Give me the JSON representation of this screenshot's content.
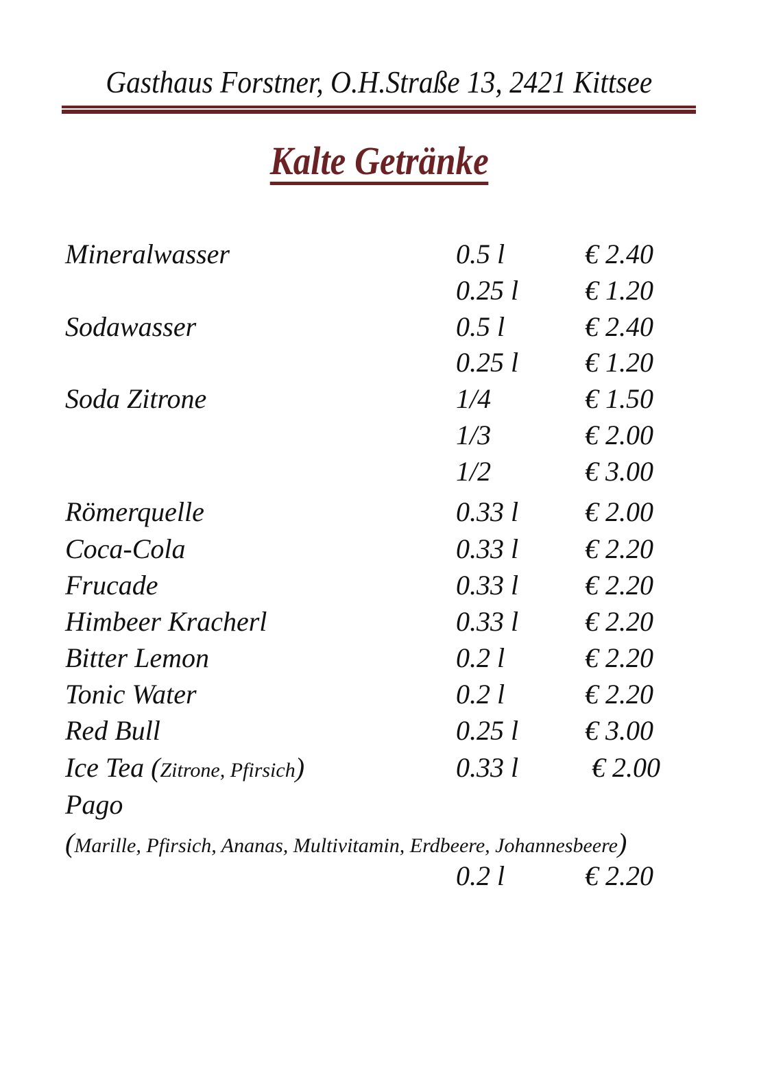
{
  "header": "Gasthaus Forstner, O.H.Straße 13, 2421 Kittsee",
  "title": "Kalte Getränke",
  "accent_color": "#6b2224",
  "items": [
    {
      "name": "Mineralwasser",
      "size": "0.5 l",
      "price": "€ 2.40"
    },
    {
      "name": "",
      "size": "0.25 l",
      "price": "€ 1.20"
    },
    {
      "name": "Sodawasser",
      "size": "0.5 l",
      "price": "€ 2.40"
    },
    {
      "name": "",
      "size": "0.25 l",
      "price": "€ 1.20"
    },
    {
      "name": "Soda Zitrone",
      "size": "1/4",
      "price": "€ 1.50"
    },
    {
      "name": "",
      "size": "1/3",
      "price": "€ 2.00"
    },
    {
      "name": "",
      "size": "1/2",
      "price": "€ 3.00"
    },
    {
      "name": "Römerquelle",
      "size": "0.33 l",
      "price": "€ 2.00"
    },
    {
      "name": "Coca-Cola",
      "size": "0.33 l",
      "price": "€ 2.20"
    },
    {
      "name": "Frucade",
      "size": "0.33 l",
      "price": "€ 2.20"
    },
    {
      "name": "Himbeer Kracherl",
      "size": "0.33 l",
      "price": "€ 2.20"
    },
    {
      "name": "Bitter Lemon",
      "size": "0.2 l",
      "price": "€ 2.20"
    },
    {
      "name": "Tonic Water",
      "size": "0.2 l",
      "price": "€ 2.20"
    },
    {
      "name": "Red Bull",
      "size": "0.25 l",
      "price": "€ 3.00"
    },
    {
      "name": "Ice Tea",
      "note": "Zitrone, Pfirsich",
      "size": "0.33 l",
      "price": "€ 2.00"
    },
    {
      "name": "Pago",
      "size": "",
      "price": ""
    },
    {
      "name": "",
      "note": "Marille, Pfirsich, Ananas, Multivitamin, Erdbeere, Johannesbeere",
      "size": "",
      "price": ""
    },
    {
      "name": "",
      "size": "0.2 l",
      "price": "€ 2.20"
    }
  ]
}
